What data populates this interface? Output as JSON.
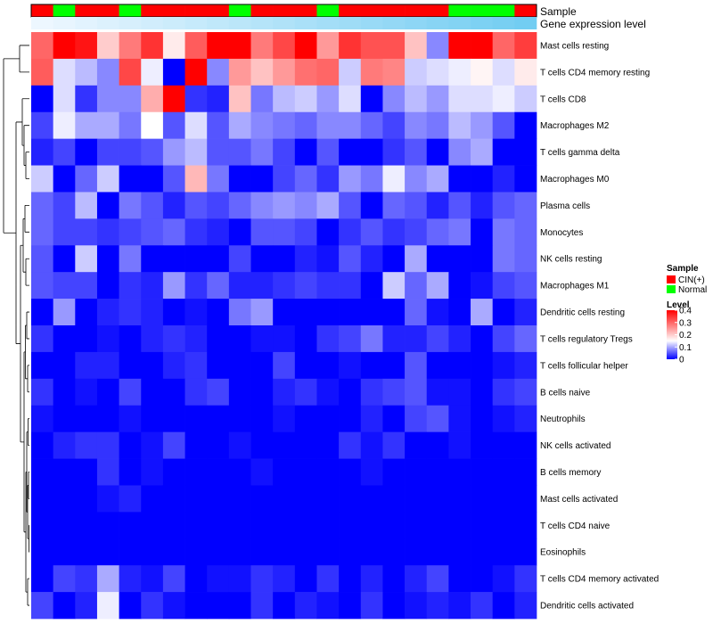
{
  "chart_data": {
    "type": "heatmap",
    "title": "",
    "annotation_tracks": [
      "Sample",
      "Gene expression level"
    ],
    "sample_groups": [
      "CIN(+)",
      "Normal",
      "CIN(+)",
      "CIN(+)",
      "Normal",
      "CIN(+)",
      "CIN(+)",
      "CIN(+)",
      "CIN(+)",
      "Normal",
      "CIN(+)",
      "CIN(+)",
      "CIN(+)",
      "Normal",
      "CIN(+)",
      "CIN(+)",
      "CIN(+)",
      "CIN(+)",
      "CIN(+)",
      "Normal",
      "Normal",
      "Normal",
      "CIN(+)"
    ],
    "expression_level": [
      0.02,
      0.06,
      0.1,
      0.14,
      0.18,
      0.22,
      0.26,
      0.3,
      0.34,
      0.38,
      0.42,
      0.46,
      0.5,
      0.54,
      0.58,
      0.62,
      0.66,
      0.7,
      0.74,
      0.78,
      0.82,
      0.86,
      0.9
    ],
    "rows": [
      "Mast cells resting",
      "T cells CD4 memory resting",
      "T cells CD8",
      "Macrophages M2",
      "T cells gamma delta",
      "Macrophages M0",
      "Plasma cells",
      "Monocytes",
      "NK cells resting",
      "Macrophages M1",
      "Dendritic cells resting",
      "T cells regulatory  Tregs",
      "T cells follicular helper",
      "B cells naive",
      "Neutrophils",
      "NK cells activated",
      "B cells memory",
      "Mast cells activated",
      "T cells CD4 naive",
      "Eosinophils",
      "T cells CD4 memory activated",
      "Dendritic cells activated"
    ],
    "values": [
      [
        0.3,
        0.4,
        0.38,
        0.2,
        0.28,
        0.35,
        0.17,
        0.31,
        0.4,
        0.4,
        0.28,
        0.33,
        0.4,
        0.25,
        0.35,
        0.32,
        0.32,
        0.21,
        0.08,
        0.4,
        0.4,
        0.3,
        0.34
      ],
      [
        0.31,
        0.13,
        0.11,
        0.08,
        0.33,
        0.14,
        0.0,
        0.4,
        0.08,
        0.25,
        0.21,
        0.25,
        0.29,
        0.3,
        0.12,
        0.28,
        0.27,
        0.12,
        0.13,
        0.14,
        0.16,
        0.13,
        0.17
      ],
      [
        0.0,
        0.13,
        0.03,
        0.08,
        0.08,
        0.23,
        0.4,
        0.03,
        0.02,
        0.21,
        0.07,
        0.11,
        0.12,
        0.09,
        0.13,
        0.0,
        0.08,
        0.11,
        0.09,
        0.13,
        0.13,
        0.14,
        0.12
      ],
      [
        0.04,
        0.14,
        0.1,
        0.1,
        0.07,
        0.15,
        0.05,
        0.13,
        0.05,
        0.1,
        0.08,
        0.07,
        0.06,
        0.08,
        0.08,
        0.06,
        0.04,
        0.08,
        0.07,
        0.11,
        0.09,
        0.05,
        0.0
      ],
      [
        0.02,
        0.04,
        0.0,
        0.04,
        0.04,
        0.05,
        0.09,
        0.11,
        0.05,
        0.05,
        0.07,
        0.04,
        0.0,
        0.05,
        0.0,
        0.0,
        0.03,
        0.05,
        0.0,
        0.08,
        0.1,
        0.0,
        0.0
      ],
      [
        0.12,
        0.0,
        0.06,
        0.12,
        0.0,
        0.0,
        0.05,
        0.22,
        0.07,
        0.0,
        0.0,
        0.04,
        0.06,
        0.03,
        0.09,
        0.07,
        0.14,
        0.08,
        0.1,
        0.0,
        0.0,
        0.02,
        0.0
      ],
      [
        0.06,
        0.04,
        0.11,
        0.0,
        0.07,
        0.05,
        0.02,
        0.05,
        0.04,
        0.06,
        0.08,
        0.09,
        0.08,
        0.1,
        0.05,
        0.0,
        0.06,
        0.05,
        0.02,
        0.05,
        0.02,
        0.05,
        0.06
      ],
      [
        0.06,
        0.04,
        0.04,
        0.03,
        0.04,
        0.05,
        0.06,
        0.03,
        0.02,
        0.0,
        0.05,
        0.05,
        0.04,
        0.0,
        0.03,
        0.05,
        0.03,
        0.04,
        0.06,
        0.07,
        0.0,
        0.07,
        0.06
      ],
      [
        0.05,
        0.0,
        0.12,
        0.0,
        0.07,
        0.0,
        0.0,
        0.0,
        0.0,
        0.04,
        0.0,
        0.0,
        0.02,
        0.01,
        0.05,
        0.02,
        0.0,
        0.1,
        0.0,
        0.0,
        0.0,
        0.07,
        0.06
      ],
      [
        0.05,
        0.04,
        0.04,
        0.0,
        0.03,
        0.02,
        0.09,
        0.03,
        0.06,
        0.02,
        0.02,
        0.03,
        0.04,
        0.03,
        0.03,
        0.0,
        0.12,
        0.06,
        0.1,
        0.0,
        0.01,
        0.04,
        0.05
      ],
      [
        0.0,
        0.09,
        0.0,
        0.02,
        0.03,
        0.02,
        0.0,
        0.01,
        0.0,
        0.07,
        0.09,
        0.0,
        0.0,
        0.0,
        0.0,
        0.0,
        0.0,
        0.06,
        0.01,
        0.0,
        0.1,
        0.0,
        0.02
      ],
      [
        0.03,
        0.0,
        0.0,
        0.01,
        0.0,
        0.02,
        0.03,
        0.02,
        0.0,
        0.0,
        0.01,
        0.01,
        0.0,
        0.03,
        0.04,
        0.07,
        0.02,
        0.02,
        0.04,
        0.02,
        0.0,
        0.04,
        0.06
      ],
      [
        0.0,
        0.0,
        0.02,
        0.02,
        0.0,
        0.0,
        0.02,
        0.03,
        0.0,
        0.0,
        0.0,
        0.04,
        0.0,
        0.0,
        0.01,
        0.0,
        0.0,
        0.05,
        0.0,
        0.0,
        0.0,
        0.01,
        0.02
      ],
      [
        0.03,
        0.0,
        0.01,
        0.0,
        0.04,
        0.0,
        0.0,
        0.03,
        0.04,
        0.0,
        0.0,
        0.02,
        0.03,
        0.01,
        0.0,
        0.03,
        0.04,
        0.05,
        0.01,
        0.01,
        0.0,
        0.03,
        0.04
      ],
      [
        0.01,
        0.0,
        0.0,
        0.0,
        0.01,
        0.0,
        0.0,
        0.0,
        0.0,
        0.0,
        0.0,
        0.01,
        0.0,
        0.0,
        0.0,
        0.02,
        0.0,
        0.04,
        0.05,
        0.01,
        0.0,
        0.01,
        0.02
      ],
      [
        0.0,
        0.02,
        0.03,
        0.03,
        0.0,
        0.01,
        0.04,
        0.0,
        0.0,
        0.01,
        0.0,
        0.0,
        0.0,
        0.0,
        0.03,
        0.01,
        0.03,
        0.0,
        0.0,
        0.01,
        0.0,
        0.0,
        0.0
      ],
      [
        0.0,
        0.0,
        0.0,
        0.03,
        0.0,
        0.01,
        0.0,
        0.0,
        0.0,
        0.0,
        0.01,
        0.0,
        0.0,
        0.0,
        0.0,
        0.01,
        0.0,
        0.0,
        0.0,
        0.0,
        0.0,
        0.0,
        0.0
      ],
      [
        0.0,
        0.0,
        0.0,
        0.01,
        0.02,
        0.0,
        0.0,
        0.0,
        0.0,
        0.0,
        0.0,
        0.0,
        0.0,
        0.0,
        0.0,
        0.0,
        0.0,
        0.0,
        0.0,
        0.0,
        0.0,
        0.0,
        0.0
      ],
      [
        0.0,
        0.0,
        0.0,
        0.0,
        0.0,
        0.0,
        0.0,
        0.0,
        0.0,
        0.0,
        0.0,
        0.0,
        0.0,
        0.0,
        0.0,
        0.0,
        0.0,
        0.0,
        0.0,
        0.0,
        0.0,
        0.0,
        0.0
      ],
      [
        0.0,
        0.0,
        0.0,
        0.0,
        0.0,
        0.0,
        0.0,
        0.0,
        0.0,
        0.0,
        0.0,
        0.0,
        0.0,
        0.0,
        0.0,
        0.0,
        0.0,
        0.0,
        0.0,
        0.0,
        0.0,
        0.0,
        0.0
      ],
      [
        0.0,
        0.04,
        0.03,
        0.1,
        0.02,
        0.01,
        0.04,
        0.0,
        0.01,
        0.01,
        0.03,
        0.02,
        0.0,
        0.03,
        0.0,
        0.02,
        0.0,
        0.02,
        0.04,
        0.0,
        0.0,
        0.01,
        0.03
      ],
      [
        0.04,
        0.0,
        0.02,
        0.14,
        0.0,
        0.03,
        0.01,
        0.0,
        0.0,
        0.0,
        0.03,
        0.0,
        0.02,
        0.01,
        0.0,
        0.03,
        0.0,
        0.01,
        0.02,
        0.01,
        0.03,
        0.0,
        0.02
      ]
    ],
    "color_scale": {
      "min": 0,
      "max": 0.4,
      "colors": [
        "#0000ff",
        "#ffffff",
        "#ff0000"
      ],
      "breaks": [
        0,
        0.15,
        0.4
      ]
    },
    "legend": {
      "sample_title": "Sample",
      "sample_entries": [
        {
          "label": "CIN(+)",
          "color": "#ff0000"
        },
        {
          "label": "Normal",
          "color": "#00ff00"
        }
      ],
      "level_title": "Level",
      "level_ticks": [
        "0.4",
        "0.3",
        "0.2",
        "0.1",
        "0"
      ],
      "level_values": [
        0.4,
        0.3,
        0.2,
        0.1,
        0
      ]
    },
    "dendrogram_side": "left"
  }
}
